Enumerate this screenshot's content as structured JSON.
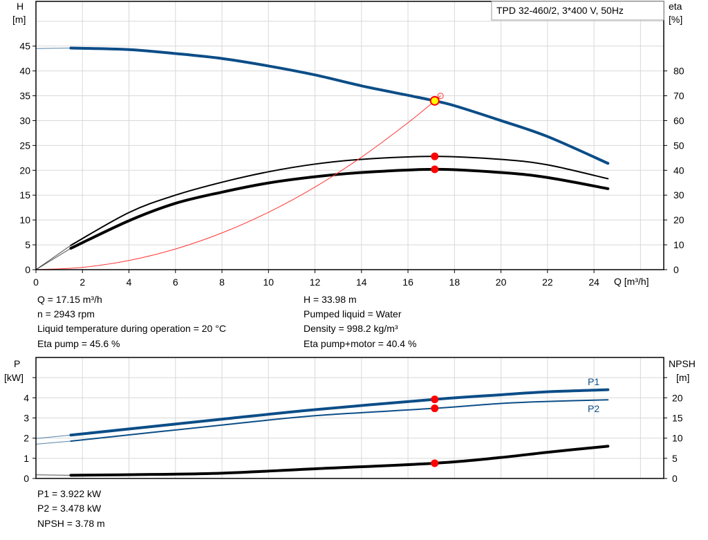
{
  "title_box": "TPD 32-460/2, 3*400 V, 50Hz",
  "colors": {
    "head": "#0b4d87",
    "efficiency": "#000000",
    "system": "#ff3333",
    "duty_point": "#ff0000",
    "duty_fill": "#ffff00",
    "power": "#0b4d87",
    "npsh": "#000000"
  },
  "info_top": {
    "left": [
      "Q = 17.15 m³/h",
      "n = 2943 rpm",
      "Liquid temperature during operation = 20 °C",
      "Eta pump = 45.6 %"
    ],
    "right": [
      "H = 33.98 m",
      "Pumped liquid = Water",
      "Density = 998.2 kg/m³",
      "Eta pump+motor = 40.4 %"
    ]
  },
  "info_bottom": [
    "P1 = 3.922 kW",
    "P2 = 3.478 kW",
    "NPSH = 3.78 m"
  ],
  "chart_data": [
    {
      "type": "line",
      "xlabel": "Q [m³/h]",
      "ylabel": [
        "H",
        "[m]"
      ],
      "y2label": [
        "eta",
        "[%]"
      ],
      "xlim": [
        0,
        27
      ],
      "ylim": [
        0,
        54
      ],
      "y2lim": [
        0,
        108
      ],
      "xticks": [
        0,
        2,
        4,
        6,
        8,
        10,
        12,
        14,
        16,
        18,
        20,
        22,
        24
      ],
      "yticks": [
        0,
        5,
        10,
        15,
        20,
        25,
        30,
        35,
        40,
        45
      ],
      "y2ticks": [
        0,
        10,
        20,
        30,
        40,
        50,
        60,
        70,
        80
      ],
      "grid": true,
      "series": [
        {
          "id": "head",
          "axis": "H",
          "x": [
            1.5,
            4,
            6,
            8,
            10,
            12,
            14,
            16,
            17.15,
            18,
            20,
            22,
            24.6
          ],
          "y": [
            44.6,
            44.3,
            43.5,
            42.5,
            41,
            39.2,
            37,
            35.1,
            33.98,
            33.0,
            30,
            26.8,
            21.4
          ],
          "extrapolated": {
            "x": [
              0,
              1.5
            ],
            "y": [
              44.5,
              44.6
            ]
          }
        },
        {
          "id": "eta-pump",
          "axis": "eta",
          "x": [
            1.5,
            4,
            6,
            8,
            10,
            12,
            14,
            17.15,
            20,
            22,
            24.6
          ],
          "y": [
            9.8,
            23,
            30,
            35.2,
            39.4,
            42.5,
            44.4,
            45.6,
            44.4,
            42.2,
            36.6
          ],
          "extrapolated": {
            "x": [
              0,
              1.5
            ],
            "y": [
              0,
              9.8
            ]
          }
        },
        {
          "id": "eta-pump-motor",
          "axis": "eta",
          "x": [
            1.5,
            4,
            6,
            8,
            10,
            12,
            14,
            17.15,
            20,
            22,
            24.6
          ],
          "y": [
            8.6,
            19.7,
            26.7,
            31.2,
            34.9,
            37.4,
            39.1,
            40.4,
            39.1,
            37.1,
            32.6
          ],
          "extrapolated": {
            "x": [
              0,
              1.5
            ],
            "y": [
              0,
              8.6
            ]
          }
        },
        {
          "id": "system-curve",
          "axis": "H",
          "x": [
            0,
            2,
            4,
            6,
            8,
            10,
            12,
            14,
            16,
            17.15,
            17.4
          ],
          "y": [
            0,
            0.46,
            1.85,
            4.16,
            7.39,
            11.55,
            16.63,
            22.64,
            29.57,
            33.98,
            34.97
          ]
        }
      ],
      "duty_point": {
        "Q": 17.15,
        "H": 33.98,
        "eta_pump": 45.6,
        "eta_pump_motor": 40.4
      }
    },
    {
      "type": "line",
      "ylabel": [
        "P",
        "[kW]"
      ],
      "y2label": [
        "NPSH",
        "[m]"
      ],
      "xlim": [
        0,
        27
      ],
      "ylim": [
        0,
        6
      ],
      "y2lim": [
        0,
        30
      ],
      "yticks": [
        0,
        1,
        2,
        3,
        4,
        5
      ],
      "ytick_labels": [
        "0",
        "1",
        "2",
        "3",
        "4",
        ""
      ],
      "y2ticks": [
        0,
        5,
        10,
        15,
        20,
        25
      ],
      "y2tick_labels": [
        "0",
        "5",
        "10",
        "15",
        "20",
        ""
      ],
      "grid": true,
      "series": [
        {
          "id": "P1",
          "name": "P1",
          "axis": "P",
          "x": [
            1.5,
            8,
            12,
            17.15,
            20,
            22,
            24.6
          ],
          "y": [
            2.15,
            2.94,
            3.41,
            3.922,
            4.15,
            4.3,
            4.4
          ],
          "extrapolated": {
            "x": [
              0,
              1.5
            ],
            "y": [
              1.98,
              2.15
            ]
          }
        },
        {
          "id": "P2",
          "name": "P2",
          "axis": "P",
          "x": [
            1.5,
            8,
            12,
            17.15,
            20,
            22,
            24.6
          ],
          "y": [
            1.85,
            2.65,
            3.11,
            3.478,
            3.72,
            3.82,
            3.9
          ],
          "extrapolated": {
            "x": [
              0,
              1.5
            ],
            "y": [
              1.7,
              1.85
            ]
          }
        },
        {
          "id": "NPSH",
          "axis": "NPSH",
          "x": [
            1.5,
            5,
            8,
            12,
            17.15,
            20,
            22,
            24.6
          ],
          "y": [
            0.8,
            1.0,
            1.3,
            2.4,
            3.78,
            5.2,
            6.5,
            8.0
          ],
          "extrapolated": {
            "x": [
              0,
              1.5
            ],
            "y": [
              0.9,
              0.8
            ]
          }
        }
      ],
      "duty_point": {
        "Q": 17.15,
        "P1": 3.922,
        "P2": 3.478,
        "NPSH": 3.78
      }
    }
  ]
}
